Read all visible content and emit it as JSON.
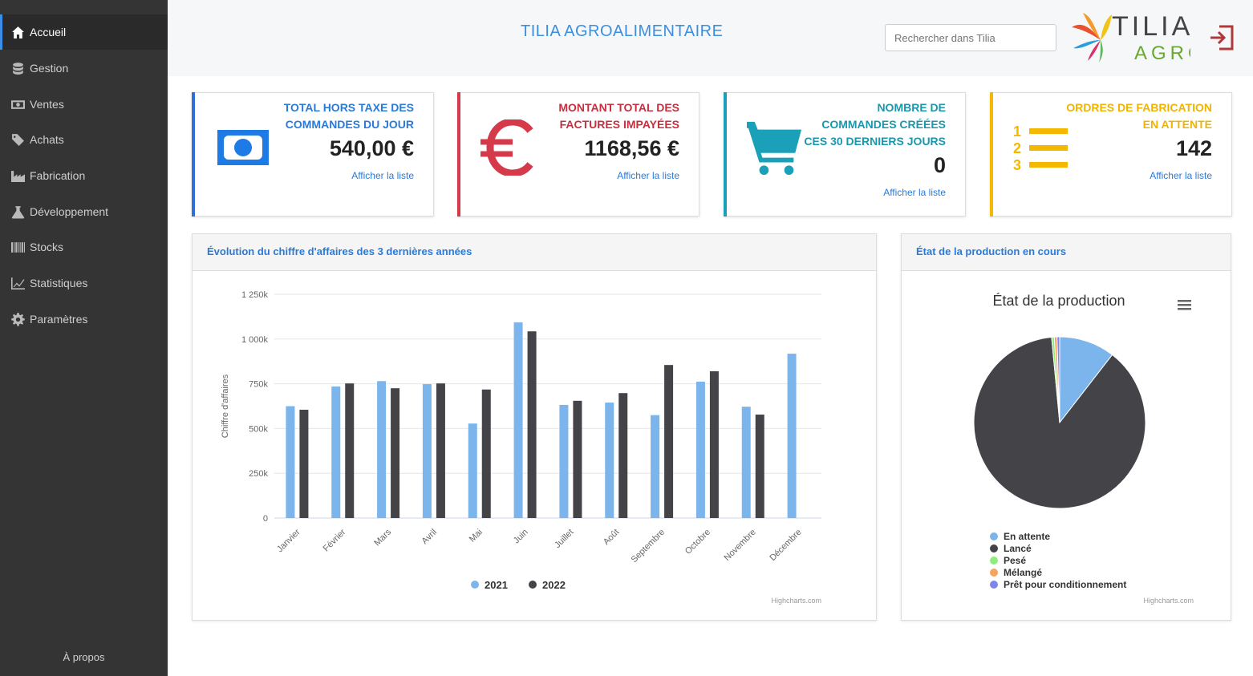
{
  "sidebar": {
    "items": [
      {
        "label": "Accueil",
        "icon": "home-icon",
        "active": true
      },
      {
        "label": "Gestion",
        "icon": "database-icon",
        "active": false
      },
      {
        "label": "Ventes",
        "icon": "money-icon",
        "active": false
      },
      {
        "label": "Achats",
        "icon": "tags-icon",
        "active": false
      },
      {
        "label": "Fabrication",
        "icon": "industry-icon",
        "active": false
      },
      {
        "label": "Développement",
        "icon": "flask-icon",
        "active": false
      },
      {
        "label": "Stocks",
        "icon": "barcode-icon",
        "active": false
      },
      {
        "label": "Statistiques",
        "icon": "line-chart-icon",
        "active": false
      },
      {
        "label": "Paramètres",
        "icon": "gear-icon",
        "active": false
      }
    ],
    "about": "À propos"
  },
  "header": {
    "title": "TILIA AGROALIMENTAIRE",
    "search_placeholder": "Rechercher dans Tilia",
    "logo_top": "TILIA",
    "logo_bottom": "AGRO"
  },
  "cards": [
    {
      "title": [
        "TOTAL HORS TAXE DES",
        "COMMANDES DU JOUR"
      ],
      "value": "540,00 €",
      "link": "Afficher la liste",
      "color": "#2f6fd6",
      "icon": "banknote-icon"
    },
    {
      "title": [
        "MONTANT TOTAL DES",
        "FACTURES IMPAYÉES"
      ],
      "value": "1168,56 €",
      "link": "Afficher la liste",
      "color": "#d43a4a",
      "icon": "euro-icon"
    },
    {
      "title": [
        "NOMBRE DE",
        "COMMANDES CRÉÉES",
        "CES 30 DERNIERS JOURS"
      ],
      "value": "0",
      "link": "Afficher la liste",
      "color": "#1aa0b8",
      "icon": "cart-icon"
    },
    {
      "title": [
        "ORDRES DE FABRICATION",
        "EN ATTENTE"
      ],
      "value": "142",
      "link": "Afficher la liste",
      "color": "#f5b800",
      "icon": "ordered-list-icon"
    }
  ],
  "revenue_panel": {
    "title": "Évolution du chiffre d'affaires des 3 dernières années"
  },
  "production_panel": {
    "title": "État de la production en cours"
  },
  "chart_data": [
    {
      "type": "bar",
      "title": "",
      "xlabel": "",
      "ylabel": "Chiffre d'affaires",
      "ylim": [
        0,
        1250000
      ],
      "yticks": [
        "0",
        "250k",
        "500k",
        "750k",
        "1 000k",
        "1 250k"
      ],
      "categories": [
        "Janvier",
        "Février",
        "Mars",
        "Avril",
        "Mai",
        "Juin",
        "Juillet",
        "Août",
        "Septembre",
        "Octobre",
        "Novembre",
        "Décembre"
      ],
      "series": [
        {
          "name": "2021",
          "color": "#7cb5ec",
          "values": [
            625000,
            735000,
            765000,
            748000,
            528000,
            1093000,
            632000,
            645000,
            575000,
            762000,
            622000,
            918000
          ]
        },
        {
          "name": "2022",
          "color": "#434348",
          "values": [
            605000,
            752000,
            725000,
            752000,
            718000,
            1043000,
            655000,
            698000,
            855000,
            820000,
            578000,
            null
          ]
        }
      ],
      "legend": "bottom-center",
      "credit": "Highcharts.com"
    },
    {
      "type": "pie",
      "title": "État de la production",
      "slices": [
        {
          "name": "En attente",
          "value": 10.5,
          "color": "#7cb5ec"
        },
        {
          "name": "Lancé",
          "value": 88.0,
          "color": "#434348"
        },
        {
          "name": "Pesé",
          "value": 0.5,
          "color": "#90ed7d"
        },
        {
          "name": "Mélangé",
          "value": 0.5,
          "color": "#f7a35c"
        },
        {
          "name": "Prêt pour conditionnement",
          "value": 0.5,
          "color": "#8085e9"
        }
      ],
      "legend": "bottom-left",
      "credit": "Highcharts.com"
    }
  ]
}
